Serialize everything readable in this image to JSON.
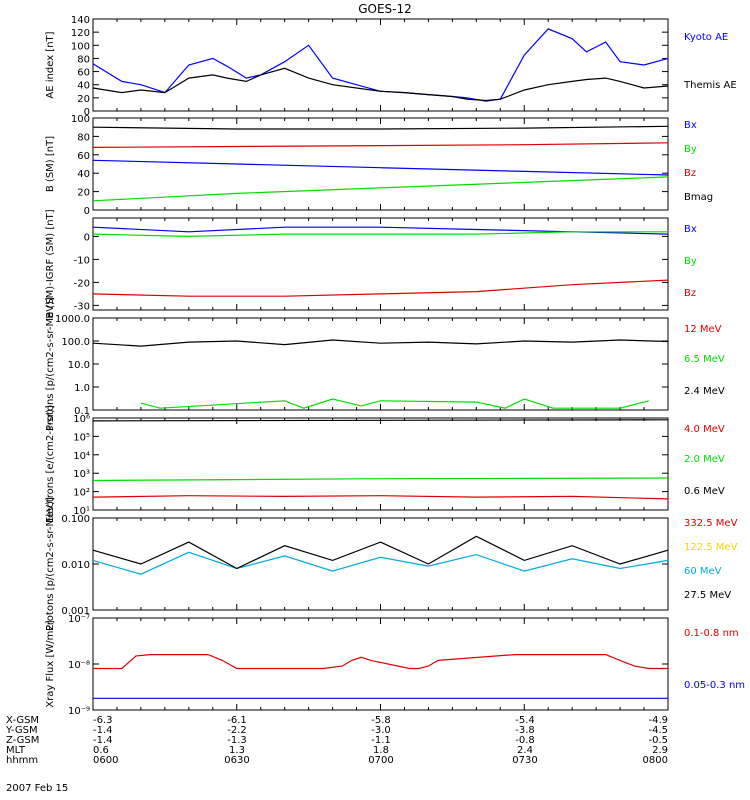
{
  "title": "GOES-12",
  "colors": {
    "black": "#000000",
    "blue": "#0000ff",
    "red": "#e00000",
    "green": "#00dd00",
    "cyan": "#00aadd",
    "yellow": "#ffd200"
  },
  "time_axis": {
    "unit": "UT",
    "start": "0600",
    "end": "0800",
    "ticks": [
      "0600",
      "0630",
      "0700",
      "0730",
      "0800"
    ]
  },
  "ephemeris": {
    "rows": [
      {
        "label": "X-GSM",
        "values": [
          "-6.3",
          "-6.1",
          "-5.8",
          "-5.4",
          "-4.9"
        ]
      },
      {
        "label": "Y-GSM",
        "values": [
          "-1.4",
          "-2.2",
          "-3.0",
          "-3.8",
          "-4.5"
        ]
      },
      {
        "label": "Z-GSM",
        "values": [
          "-1.4",
          "-1.3",
          "-1.1",
          "-0.8",
          "-0.5"
        ]
      },
      {
        "label": "MLT",
        "values": [
          "0.6",
          "1.3",
          "1.8",
          "2.4",
          "2.9"
        ]
      },
      {
        "label": "hhmm",
        "values": [
          "0600",
          "0630",
          "0700",
          "0730",
          "0800"
        ]
      }
    ],
    "date": "2007 Feb 15"
  },
  "chart_data": [
    {
      "type": "line",
      "ylabel": "AE index [nT]",
      "ylim": [
        0,
        140
      ],
      "yticks": [
        0,
        20,
        40,
        60,
        80,
        100,
        120,
        140
      ],
      "scale": "linear",
      "series": [
        {
          "name": "Kyoto AE",
          "color": "blue",
          "x": [
            0,
            6,
            10,
            15,
            20,
            25,
            28,
            32,
            35,
            40,
            45,
            50,
            55,
            60,
            65,
            70,
            75,
            78,
            82,
            85,
            90,
            95,
            100,
            103,
            107,
            110,
            115,
            120
          ],
          "y": [
            72,
            45,
            40,
            28,
            70,
            80,
            68,
            50,
            55,
            75,
            100,
            50,
            40,
            30,
            28,
            25,
            22,
            20,
            15,
            18,
            85,
            125,
            110,
            90,
            105,
            75,
            70,
            80
          ]
        },
        {
          "name": "Themis AE",
          "color": "black",
          "x": [
            0,
            6,
            10,
            15,
            20,
            25,
            28,
            32,
            35,
            40,
            45,
            50,
            55,
            60,
            65,
            70,
            75,
            78,
            82,
            85,
            90,
            95,
            100,
            103,
            107,
            110,
            115,
            120
          ],
          "y": [
            35,
            28,
            32,
            28,
            50,
            55,
            50,
            45,
            55,
            65,
            50,
            40,
            35,
            30,
            28,
            25,
            22,
            18,
            16,
            18,
            32,
            40,
            45,
            48,
            50,
            45,
            35,
            38
          ]
        }
      ]
    },
    {
      "type": "line",
      "ylabel": "B (SM) [nT]",
      "ylim": [
        0,
        100
      ],
      "yticks": [
        0,
        20,
        40,
        60,
        80,
        100
      ],
      "scale": "linear",
      "series": [
        {
          "name": "Bx",
          "color": "blue",
          "x": [
            0,
            30,
            60,
            90,
            120
          ],
          "y": [
            54,
            50,
            46,
            42,
            38
          ]
        },
        {
          "name": "By",
          "color": "green",
          "x": [
            0,
            30,
            60,
            90,
            120
          ],
          "y": [
            10,
            18,
            24,
            30,
            36
          ]
        },
        {
          "name": "Bz",
          "color": "red",
          "x": [
            0,
            30,
            60,
            90,
            120
          ],
          "y": [
            68,
            69,
            70,
            71,
            73
          ]
        },
        {
          "name": "Bmag",
          "color": "black",
          "x": [
            0,
            30,
            60,
            90,
            120
          ],
          "y": [
            90,
            88,
            88,
            89,
            91
          ]
        }
      ]
    },
    {
      "type": "line",
      "ylabel": "B (SM)-IGRF (SM) [nT]",
      "ylim": [
        -32,
        8
      ],
      "yticks": [
        -30,
        -20,
        -10,
        0
      ],
      "scale": "linear",
      "series": [
        {
          "name": "Bx",
          "color": "blue",
          "x": [
            0,
            20,
            40,
            60,
            80,
            100,
            120
          ],
          "y": [
            4,
            2,
            4,
            4,
            3,
            2,
            1
          ]
        },
        {
          "name": "By",
          "color": "green",
          "x": [
            0,
            20,
            40,
            60,
            80,
            100,
            120
          ],
          "y": [
            1,
            0,
            1,
            1,
            1,
            2,
            2
          ]
        },
        {
          "name": "Bz",
          "color": "red",
          "x": [
            0,
            20,
            40,
            60,
            80,
            100,
            120
          ],
          "y": [
            -25,
            -26,
            -26,
            -25,
            -24,
            -21,
            -19
          ]
        }
      ]
    },
    {
      "type": "line",
      "ylabel": "Protons [p/(cm2-s-sr-MeV)]",
      "ylim": [
        0.1,
        1000
      ],
      "yticks": [
        0.1,
        1.0,
        10.0,
        100.0,
        1000.0
      ],
      "scale": "log",
      "series": [
        {
          "name": "12 MeV",
          "color": "red",
          "x": [],
          "y": []
        },
        {
          "name": "6.5 MeV",
          "color": "green",
          "x": [
            10,
            14,
            40,
            44,
            50,
            56,
            60,
            80,
            86,
            90,
            96,
            110,
            116
          ],
          "y": [
            0.2,
            0.12,
            0.25,
            0.12,
            0.3,
            0.15,
            0.25,
            0.22,
            0.12,
            0.3,
            0.12,
            0.12,
            0.25
          ]
        },
        {
          "name": "2.4 MeV",
          "color": "black",
          "x": [
            0,
            10,
            20,
            30,
            40,
            50,
            60,
            70,
            80,
            90,
            100,
            110,
            120
          ],
          "y": [
            80,
            60,
            90,
            100,
            70,
            110,
            80,
            90,
            75,
            100,
            90,
            110,
            95
          ]
        }
      ]
    },
    {
      "type": "line",
      "ylabel": "Electrons [e/(cm2-s-sr)]",
      "ylim": [
        10,
        1000000
      ],
      "yticks": [
        10,
        100,
        1000,
        10000,
        100000,
        1000000
      ],
      "scale": "log",
      "series": [
        {
          "name": "4.0 MeV",
          "color": "red",
          "x": [
            0,
            20,
            40,
            60,
            80,
            100,
            120
          ],
          "y": [
            50,
            60,
            55,
            60,
            50,
            55,
            40
          ]
        },
        {
          "name": "2.0 MeV",
          "color": "green",
          "x": [
            0,
            30,
            60,
            90,
            120
          ],
          "y": [
            400,
            450,
            500,
            520,
            550
          ]
        },
        {
          "name": "0.6 MeV",
          "color": "black",
          "x": [
            0,
            60,
            120
          ],
          "y": [
            700000,
            750000,
            800000
          ]
        }
      ]
    },
    {
      "type": "line",
      "ylabel": "Protons [p/(cm2-s-sr-MeV)]",
      "ylim": [
        0.001,
        0.1
      ],
      "yticks": [
        0.001,
        0.01,
        0.1
      ],
      "scale": "log",
      "series": [
        {
          "name": "332.5 MeV",
          "color": "red",
          "x": [],
          "y": []
        },
        {
          "name": "122.5 MeV",
          "color": "yellow",
          "x": [],
          "y": []
        },
        {
          "name": "60 MeV",
          "color": "cyan",
          "x": [
            0,
            10,
            20,
            30,
            40,
            50,
            60,
            70,
            80,
            90,
            100,
            110,
            120
          ],
          "y": [
            0.012,
            0.006,
            0.018,
            0.008,
            0.015,
            0.007,
            0.014,
            0.009,
            0.016,
            0.007,
            0.013,
            0.008,
            0.012
          ]
        },
        {
          "name": "27.5 MeV",
          "color": "black",
          "x": [
            0,
            10,
            20,
            30,
            40,
            50,
            60,
            70,
            80,
            90,
            100,
            110,
            120
          ],
          "y": [
            0.02,
            0.01,
            0.03,
            0.008,
            0.025,
            0.012,
            0.03,
            0.01,
            0.04,
            0.012,
            0.025,
            0.01,
            0.02
          ]
        }
      ]
    },
    {
      "type": "line",
      "ylabel": "Xray Flux [W/m2]",
      "ylim": [
        1e-09,
        1e-07
      ],
      "yticks": [
        1e-09,
        1e-08,
        1e-07
      ],
      "scale": "log",
      "series": [
        {
          "name": "0.1-0.8 nm",
          "color": "red",
          "x": [
            0,
            6,
            9,
            12,
            24,
            27,
            30,
            48,
            52,
            54,
            56,
            58,
            66,
            68,
            70,
            72,
            88,
            92,
            94,
            96,
            100,
            107,
            110,
            113,
            116,
            120
          ],
          "y": [
            8e-09,
            8e-09,
            1.5e-08,
            1.6e-08,
            1.6e-08,
            1.2e-08,
            8e-09,
            8e-09,
            9e-09,
            1.2e-08,
            1.4e-08,
            1.2e-08,
            8e-09,
            8e-09,
            9e-09,
            1.2e-08,
            1.6e-08,
            1.6e-08,
            1.6e-08,
            1.6e-08,
            1.6e-08,
            1.6e-08,
            1.2e-08,
            9e-09,
            8e-09,
            8e-09
          ]
        },
        {
          "name": "0.05-0.3 nm",
          "color": "blue",
          "x": [
            0,
            120
          ],
          "y": [
            1.8e-09,
            1.8e-09
          ]
        }
      ]
    }
  ]
}
